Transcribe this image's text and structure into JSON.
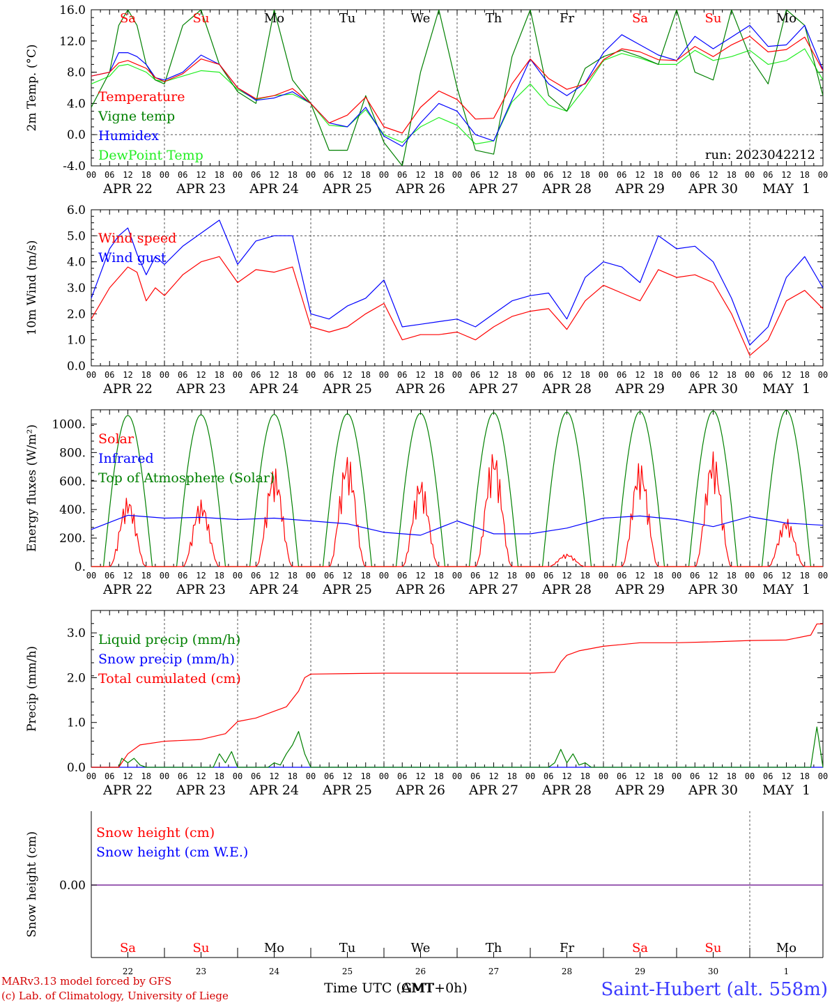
{
  "colors": {
    "red": "#ff0000",
    "green": "#008000",
    "blue": "#0000ff",
    "lightgreen": "#22ee22",
    "purple": "#7a2a9a",
    "axis": "#000000",
    "grid": "#555555",
    "footer_left": "#d40000",
    "footer_right": "#3a3aff"
  },
  "time_axis": {
    "hour_labels": [
      "00",
      "06",
      "12",
      "18"
    ],
    "final_hour_label": "00",
    "date_labels": [
      "APR 22",
      "APR 23",
      "APR 24",
      "APR 25",
      "APR 26",
      "APR 27",
      "APR 28",
      "APR 29",
      "APR 30",
      "MAY  1"
    ],
    "weekday_labels": [
      "Sa",
      "Su",
      "Mo",
      "Tu",
      "We",
      "Th",
      "Fr",
      "Sa",
      "Su",
      "Mo"
    ],
    "weekday_colors": [
      "red",
      "red",
      "black",
      "black",
      "black",
      "black",
      "black",
      "red",
      "red",
      "black"
    ],
    "day_numbers": [
      "22",
      "23",
      "24",
      "25",
      "26",
      "27",
      "28",
      "29",
      "30",
      "1"
    ],
    "xlabel": "Time UTC (GMT+0h)",
    "xlabel_overlay": "AMT"
  },
  "footer": {
    "model_line": "MARv3.13 model forced by GFS",
    "lab_line": "(c) Lab. of Climatology, University of Liege",
    "station": "Saint-Hubert (alt. 558m)"
  },
  "chart_data": [
    {
      "id": "temperature",
      "type": "line",
      "ylabel": "2m Temp. (°C)",
      "ylim": [
        -4,
        16
      ],
      "yticks": [
        "-4.0",
        "0.0",
        "4.0",
        "8.0",
        "12.0",
        "16.0"
      ],
      "run_label": "run: 2023042212",
      "x_hours": [
        0,
        6,
        9,
        12,
        15,
        18,
        21,
        24,
        30,
        36,
        42,
        48,
        54,
        60,
        66,
        72,
        78,
        84,
        90,
        96,
        102,
        108,
        114,
        120,
        126,
        132,
        138,
        144,
        150,
        156,
        162,
        168,
        174,
        180,
        186,
        192,
        198,
        204,
        210,
        216,
        222,
        228,
        234,
        240
      ],
      "series": [
        {
          "name": "Temperature",
          "color": "red",
          "values": [
            7.5,
            8.0,
            9.2,
            9.5,
            9.0,
            8.5,
            7.3,
            6.8,
            7.8,
            9.7,
            9.0,
            6.0,
            4.6,
            5.0,
            5.9,
            4.0,
            1.5,
            2.5,
            4.8,
            1.0,
            0.2,
            3.5,
            5.6,
            4.5,
            2.0,
            2.1,
            6.5,
            9.7,
            7.2,
            5.8,
            6.5,
            9.6,
            11.0,
            10.6,
            9.6,
            9.5,
            11.3,
            10.0,
            11.5,
            12.6,
            10.6,
            10.9,
            12.5,
            8.2
          ]
        },
        {
          "name": "Vigne temp",
          "color": "green",
          "values": [
            3.5,
            8.0,
            14.0,
            16.0,
            14.0,
            9.0,
            7.0,
            6.5,
            14.0,
            16.0,
            9.0,
            5.5,
            4.0,
            16.0,
            7.0,
            4.0,
            -2.0,
            -2.0,
            5.0,
            -1.0,
            -4.0,
            8.0,
            16.0,
            6.0,
            -2.0,
            -2.5,
            10.0,
            16.0,
            5.0,
            3.0,
            8.5,
            10.0,
            10.8,
            10.0,
            9.0,
            16.0,
            8.0,
            7.0,
            16.0,
            10.0,
            6.5,
            16.0,
            14.0,
            5.0
          ]
        },
        {
          "name": "Humidex",
          "color": "blue",
          "values": [
            7.5,
            8.0,
            10.5,
            10.5,
            10.0,
            9.0,
            7.3,
            7.0,
            8.0,
            10.2,
            9.0,
            6.0,
            4.4,
            4.7,
            5.5,
            4.0,
            1.5,
            1.0,
            3.5,
            -0.2,
            -1.5,
            1.5,
            4.0,
            3.0,
            0.0,
            -0.8,
            4.5,
            9.7,
            6.5,
            5.0,
            6.6,
            10.5,
            12.8,
            11.5,
            10.2,
            9.5,
            12.6,
            11.0,
            12.5,
            14.0,
            11.3,
            11.5,
            14.0,
            8.3
          ]
        },
        {
          "name": "DewPoint Temp",
          "color": "lightgreen",
          "values": [
            6.5,
            7.5,
            8.8,
            9.0,
            8.5,
            8.0,
            7.0,
            6.8,
            7.5,
            8.2,
            8.0,
            5.8,
            4.5,
            5.0,
            5.2,
            4.0,
            1.2,
            1.0,
            3.2,
            0.0,
            -1.0,
            1.0,
            2.2,
            1.2,
            -1.2,
            -0.8,
            4.2,
            6.5,
            3.8,
            3.0,
            6.0,
            9.5,
            10.4,
            9.8,
            9.0,
            9.0,
            10.8,
            9.5,
            10.0,
            10.8,
            9.0,
            9.5,
            11.0,
            7.0
          ]
        }
      ]
    },
    {
      "id": "wind",
      "type": "line",
      "ylabel": "10m Wind (m/s)",
      "ylim": [
        0,
        6
      ],
      "yticks": [
        "0.0",
        "1.0",
        "2.0",
        "3.0",
        "4.0",
        "5.0",
        "6.0"
      ],
      "x_hours": [
        0,
        6,
        9,
        12,
        15,
        18,
        21,
        24,
        30,
        36,
        42,
        48,
        54,
        60,
        66,
        72,
        78,
        84,
        90,
        96,
        102,
        108,
        114,
        120,
        126,
        132,
        138,
        144,
        150,
        156,
        162,
        168,
        174,
        180,
        186,
        192,
        198,
        204,
        210,
        216,
        222,
        228,
        234,
        240
      ],
      "series": [
        {
          "name": "Wind speed",
          "color": "red",
          "values": [
            1.8,
            3.0,
            3.4,
            3.8,
            3.6,
            2.5,
            3.0,
            2.7,
            3.5,
            4.0,
            4.2,
            3.2,
            3.7,
            3.6,
            3.8,
            1.5,
            1.3,
            1.5,
            2.0,
            2.4,
            1.0,
            1.2,
            1.2,
            1.3,
            1.0,
            1.5,
            1.9,
            2.1,
            2.2,
            1.4,
            2.5,
            3.1,
            2.8,
            2.5,
            3.7,
            3.4,
            3.5,
            3.2,
            2.0,
            0.4,
            1.0,
            2.5,
            2.9,
            2.2
          ]
        },
        {
          "name": "Wind gust",
          "color": "blue",
          "values": [
            2.6,
            4.5,
            5.0,
            5.3,
            4.3,
            3.5,
            4.2,
            3.9,
            4.6,
            5.1,
            5.6,
            3.9,
            4.8,
            5.0,
            5.0,
            2.0,
            1.8,
            2.3,
            2.6,
            3.3,
            1.5,
            1.6,
            1.7,
            1.8,
            1.5,
            2.0,
            2.5,
            2.7,
            2.8,
            1.8,
            3.4,
            4.0,
            3.8,
            3.2,
            5.0,
            4.5,
            4.6,
            4.0,
            2.6,
            0.8,
            1.5,
            3.4,
            4.2,
            3.0
          ]
        }
      ]
    },
    {
      "id": "energy",
      "type": "line",
      "ylabel": "Energy fluxes (W/m²)",
      "ylim": [
        0,
        1100
      ],
      "yticks": [
        "0.",
        "200.",
        "400.",
        "600.",
        "800.",
        "1000."
      ],
      "peaks": {
        "solar": [
          490,
          470,
          700,
          790,
          620,
          820,
          90,
          740,
          810,
          340
        ],
        "toa": [
          1060,
          1065,
          1068,
          1072,
          1076,
          1080,
          1084,
          1088,
          1092,
          1096
        ]
      },
      "infrared": {
        "x_hours": [
          0,
          12,
          24,
          36,
          48,
          60,
          72,
          84,
          96,
          108,
          120,
          132,
          144,
          156,
          168,
          180,
          192,
          204,
          216,
          228,
          240
        ],
        "values": [
          260,
          360,
          340,
          345,
          330,
          340,
          320,
          300,
          240,
          220,
          320,
          230,
          230,
          270,
          340,
          355,
          330,
          280,
          350,
          305,
          290
        ]
      },
      "series": [
        {
          "name": "Solar",
          "color": "red"
        },
        {
          "name": "Infrared",
          "color": "blue"
        },
        {
          "name": "Top of Atmosphere (Solar)",
          "color": "green"
        }
      ]
    },
    {
      "id": "precip",
      "type": "line",
      "ylabel": "Precip (mm/h)",
      "ylim": [
        0,
        3.5
      ],
      "yticks": [
        "0.0",
        "1.0",
        "2.0",
        "3.0"
      ],
      "series": [
        {
          "name": "Liquid precip (mm/h)",
          "color": "green",
          "x_hours": [
            0,
            9,
            10,
            12,
            14,
            16,
            18,
            20,
            40,
            42,
            44,
            46,
            48,
            58,
            60,
            62,
            64,
            66,
            68,
            70,
            72,
            74,
            150,
            152,
            154,
            156,
            158,
            160,
            162,
            164,
            236,
            238,
            240
          ],
          "values": [
            0,
            0,
            0.2,
            0.1,
            0.2,
            0.05,
            0,
            0,
            0,
            0.3,
            0.1,
            0.35,
            0,
            0,
            0.1,
            0.05,
            0.3,
            0.5,
            0.8,
            0.3,
            0,
            0,
            0,
            0.1,
            0.4,
            0.1,
            0.3,
            0.05,
            0.1,
            0,
            0,
            0.9,
            0
          ]
        },
        {
          "name": "Snow precip (mm/h)",
          "color": "blue",
          "x_hours": [
            0,
            240
          ],
          "values": [
            0,
            0
          ]
        },
        {
          "name": "Total cumulated (cm)",
          "color": "red",
          "x_hours": [
            0,
            9,
            12,
            16,
            24,
            36,
            44,
            48,
            54,
            60,
            64,
            68,
            70,
            72,
            84,
            96,
            120,
            144,
            152,
            154,
            156,
            160,
            168,
            180,
            192,
            204,
            216,
            228,
            236,
            238,
            240
          ],
          "values": [
            0,
            0,
            0.3,
            0.5,
            0.58,
            0.62,
            0.75,
            1.02,
            1.1,
            1.25,
            1.35,
            1.7,
            2.0,
            2.08,
            2.09,
            2.1,
            2.1,
            2.1,
            2.12,
            2.35,
            2.5,
            2.6,
            2.7,
            2.78,
            2.78,
            2.8,
            2.83,
            2.84,
            2.95,
            3.2,
            3.2
          ]
        }
      ]
    },
    {
      "id": "snow",
      "type": "line",
      "ylabel": "Snow height (cm)",
      "ytick": "0.00",
      "series": [
        {
          "name": "Snow height (cm)",
          "color": "red",
          "values": [
            0,
            0
          ]
        },
        {
          "name": "Snow height (cm W.E.)",
          "color": "blue",
          "values": [
            0,
            0
          ]
        }
      ]
    }
  ]
}
